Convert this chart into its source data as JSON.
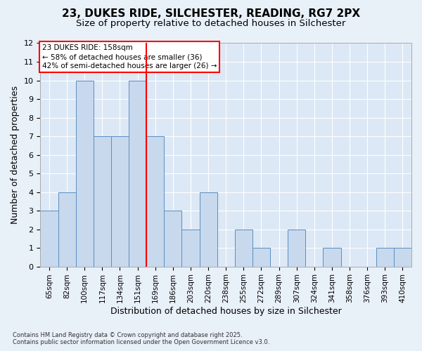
{
  "title_line1": "23, DUKES RIDE, SILCHESTER, READING, RG7 2PX",
  "title_line2": "Size of property relative to detached houses in Silchester",
  "xlabel": "Distribution of detached houses by size in Silchester",
  "ylabel": "Number of detached properties",
  "categories": [
    "65sqm",
    "82sqm",
    "100sqm",
    "117sqm",
    "134sqm",
    "151sqm",
    "169sqm",
    "186sqm",
    "203sqm",
    "220sqm",
    "238sqm",
    "255sqm",
    "272sqm",
    "289sqm",
    "307sqm",
    "324sqm",
    "341sqm",
    "358sqm",
    "376sqm",
    "393sqm",
    "410sqm"
  ],
  "values": [
    3,
    4,
    10,
    7,
    7,
    10,
    7,
    3,
    2,
    4,
    0,
    2,
    1,
    0,
    2,
    0,
    1,
    0,
    0,
    1,
    1
  ],
  "bar_color": "#c8d9ed",
  "bar_edge_color": "#5b8ec2",
  "red_line_x": 5.5,
  "ylim": [
    0,
    12
  ],
  "yticks": [
    0,
    1,
    2,
    3,
    4,
    5,
    6,
    7,
    8,
    9,
    10,
    11,
    12
  ],
  "annotation_title": "23 DUKES RIDE: 158sqm",
  "annotation_line2": "← 58% of detached houses are smaller (36)",
  "annotation_line3": "42% of semi-detached houses are larger (26) →",
  "footer_line1": "Contains HM Land Registry data © Crown copyright and database right 2025.",
  "footer_line2": "Contains public sector information licensed under the Open Government Licence v3.0.",
  "background_color": "#e8f0f8",
  "plot_bg_color": "#dce8f5",
  "grid_color": "#ffffff"
}
